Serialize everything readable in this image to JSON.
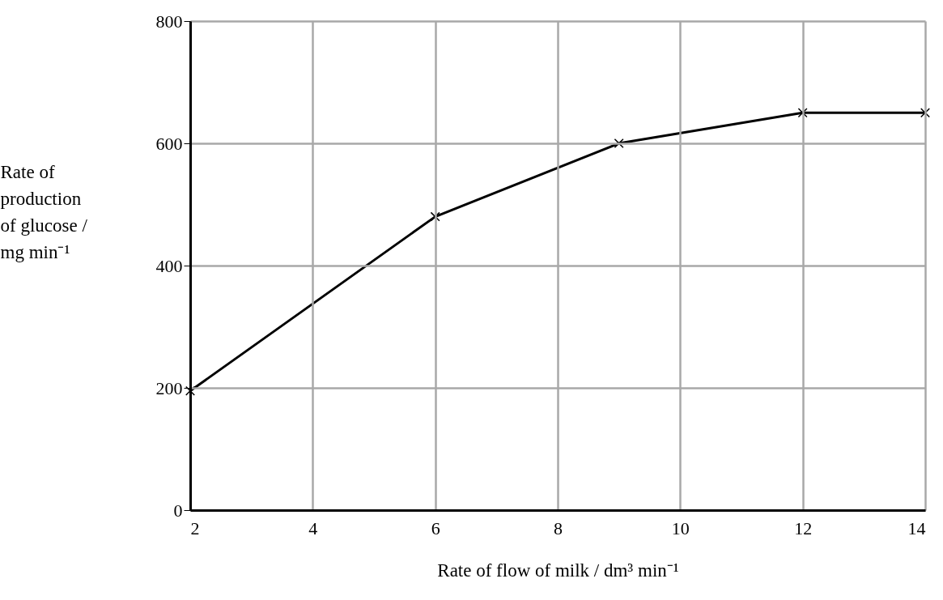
{
  "chart_data": {
    "type": "line",
    "xlabel": "Rate of flow of milk / dm³ min⁻¹",
    "ylabel": "Rate of production of glucose / mg min⁻¹",
    "x": [
      2,
      6,
      9,
      12,
      14
    ],
    "series": [
      {
        "color": "#000000",
        "values": [
          195,
          480,
          600,
          650,
          650
        ]
      }
    ],
    "xlim": [
      2,
      14
    ],
    "xticks": [
      2,
      4,
      6,
      8,
      10,
      12,
      14
    ],
    "ylim": [
      0,
      800
    ],
    "yticks": [
      0,
      200,
      400,
      600,
      800
    ],
    "grid": true,
    "marker": "cross",
    "line_style": "solid"
  }
}
